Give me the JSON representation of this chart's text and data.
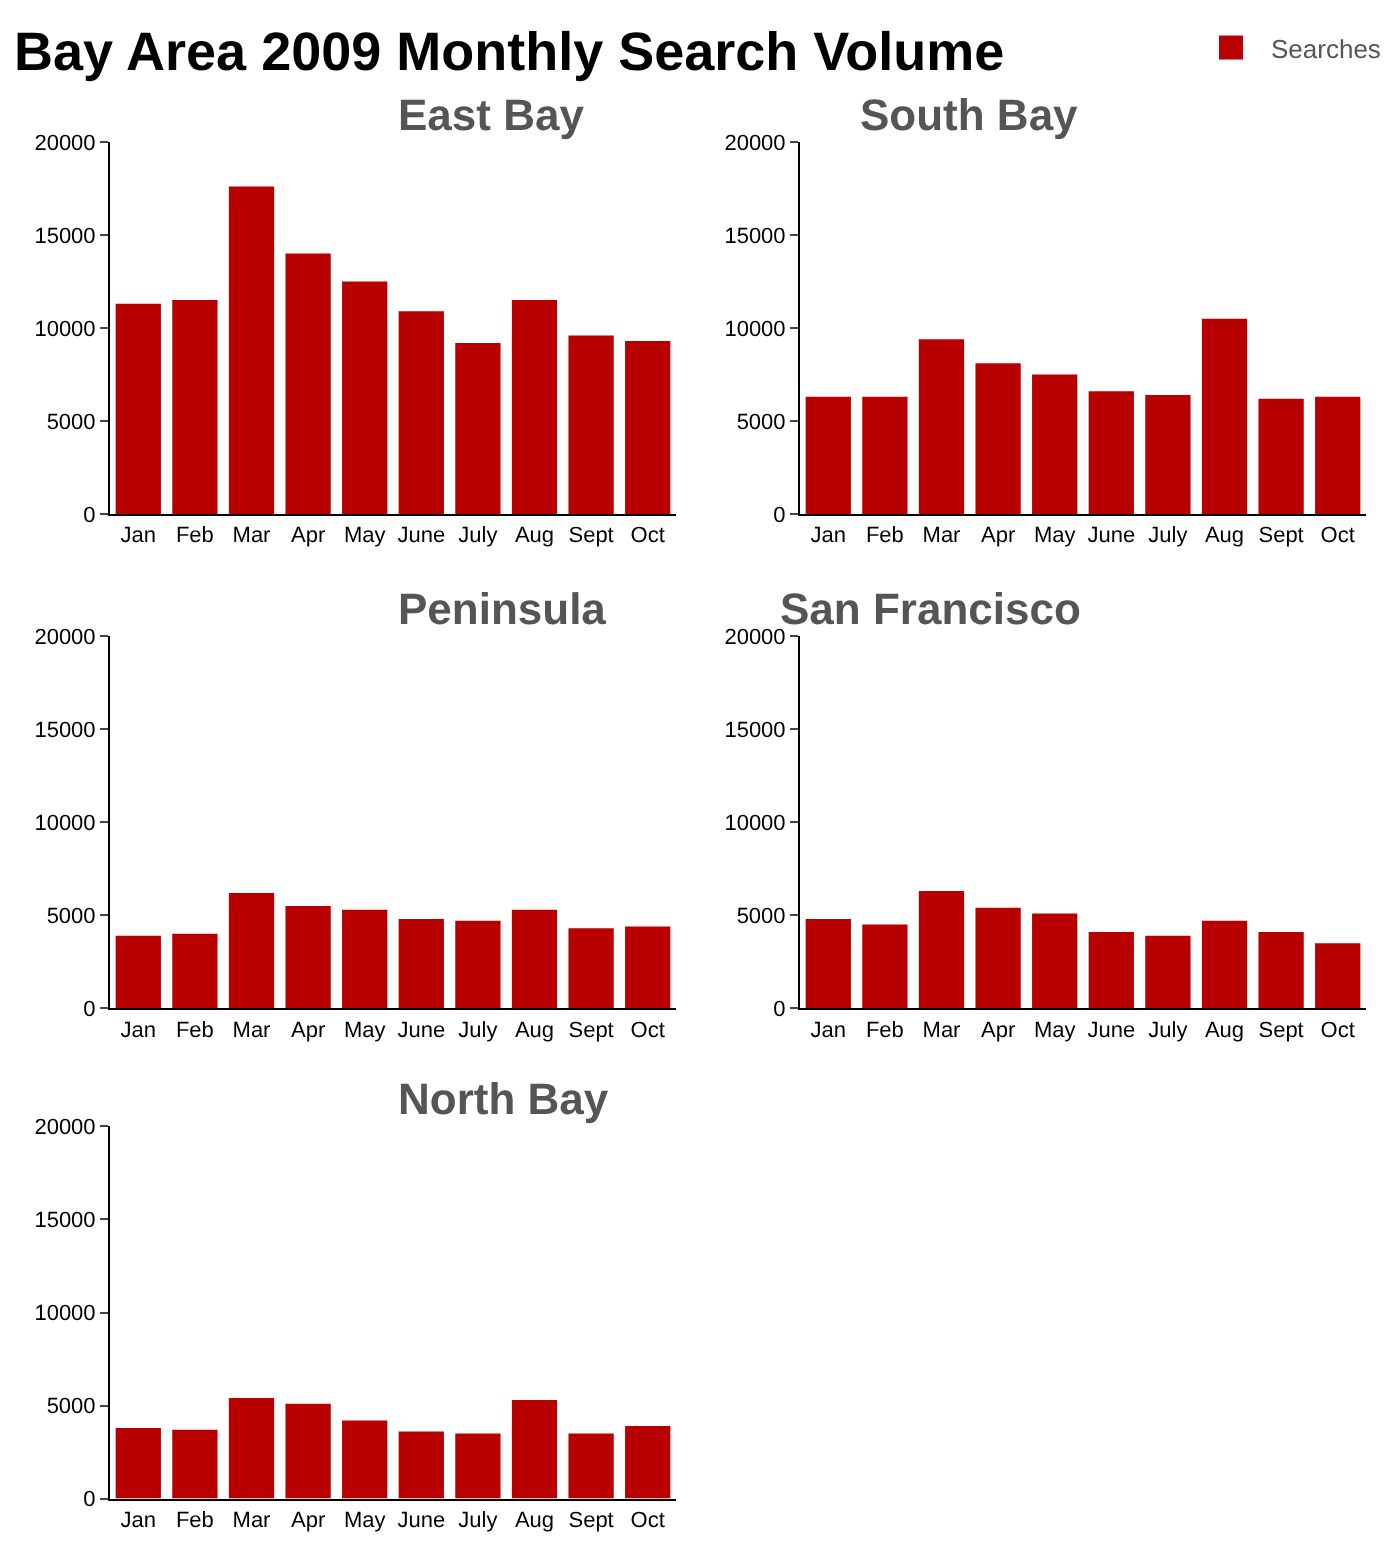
{
  "chart_data": [
    {
      "type": "bar",
      "title": "East Bay",
      "annotations": [
        "Bay Area 2009 Monthly Search Volume"
      ],
      "legend": "top right",
      "categories": [
        "Jan",
        "Feb",
        "Mar",
        "Apr",
        "May",
        "June",
        "July",
        "Aug",
        "Sept",
        "Oct"
      ],
      "ylim": [
        0,
        20000
      ],
      "yticks": [
        0,
        5000,
        10000,
        15000,
        20000
      ],
      "series": [
        {
          "name": "Searches",
          "color": "#b80000",
          "values": [
            11300,
            11500,
            17600,
            14000,
            12500,
            10900,
            9200,
            11500,
            9600,
            9300
          ]
        }
      ]
    },
    {
      "type": "bar",
      "title": "South Bay",
      "categories": [
        "Jan",
        "Feb",
        "Mar",
        "Apr",
        "May",
        "June",
        "July",
        "Aug",
        "Sept",
        "Oct"
      ],
      "ylim": [
        0,
        20000
      ],
      "yticks": [
        0,
        5000,
        10000,
        15000,
        20000
      ],
      "series": [
        {
          "color": "#b80000",
          "values": [
            6300,
            6300,
            9400,
            8100,
            7500,
            6600,
            6400,
            10500,
            6200,
            6300
          ]
        }
      ]
    },
    {
      "type": "bar",
      "title": "Peninsula",
      "categories": [
        "Jan",
        "Feb",
        "Mar",
        "Apr",
        "May",
        "June",
        "July",
        "Aug",
        "Sept",
        "Oct"
      ],
      "ylim": [
        0,
        20000
      ],
      "yticks": [
        0,
        5000,
        10000,
        15000,
        20000
      ],
      "series": [
        {
          "color": "#b80000",
          "values": [
            3900,
            4000,
            6200,
            5500,
            5300,
            4800,
            4700,
            5300,
            4300,
            4400
          ]
        }
      ]
    },
    {
      "type": "bar",
      "title": "San Francisco",
      "categories": [
        "Jan",
        "Feb",
        "Mar",
        "Apr",
        "May",
        "June",
        "July",
        "Aug",
        "Sept",
        "Oct"
      ],
      "ylim": [
        0,
        20000
      ],
      "yticks": [
        0,
        5000,
        10000,
        15000,
        20000
      ],
      "series": [
        {
          "color": "#b80000",
          "values": [
            4800,
            4500,
            6300,
            5400,
            5100,
            4100,
            3900,
            4700,
            4100,
            3500
          ]
        }
      ]
    },
    {
      "type": "bar",
      "title": "North Bay",
      "categories": [
        "Jan",
        "Feb",
        "Mar",
        "Apr",
        "May",
        "June",
        "July",
        "Aug",
        "Sept",
        "Oct"
      ],
      "ylim": [
        0,
        20000
      ],
      "yticks": [
        0,
        5000,
        10000,
        15000,
        20000
      ],
      "series": [
        {
          "color": "#b80000",
          "values": [
            3800,
            3700,
            5400,
            5100,
            4200,
            3600,
            3500,
            5300,
            3500,
            3900
          ]
        }
      ]
    }
  ]
}
